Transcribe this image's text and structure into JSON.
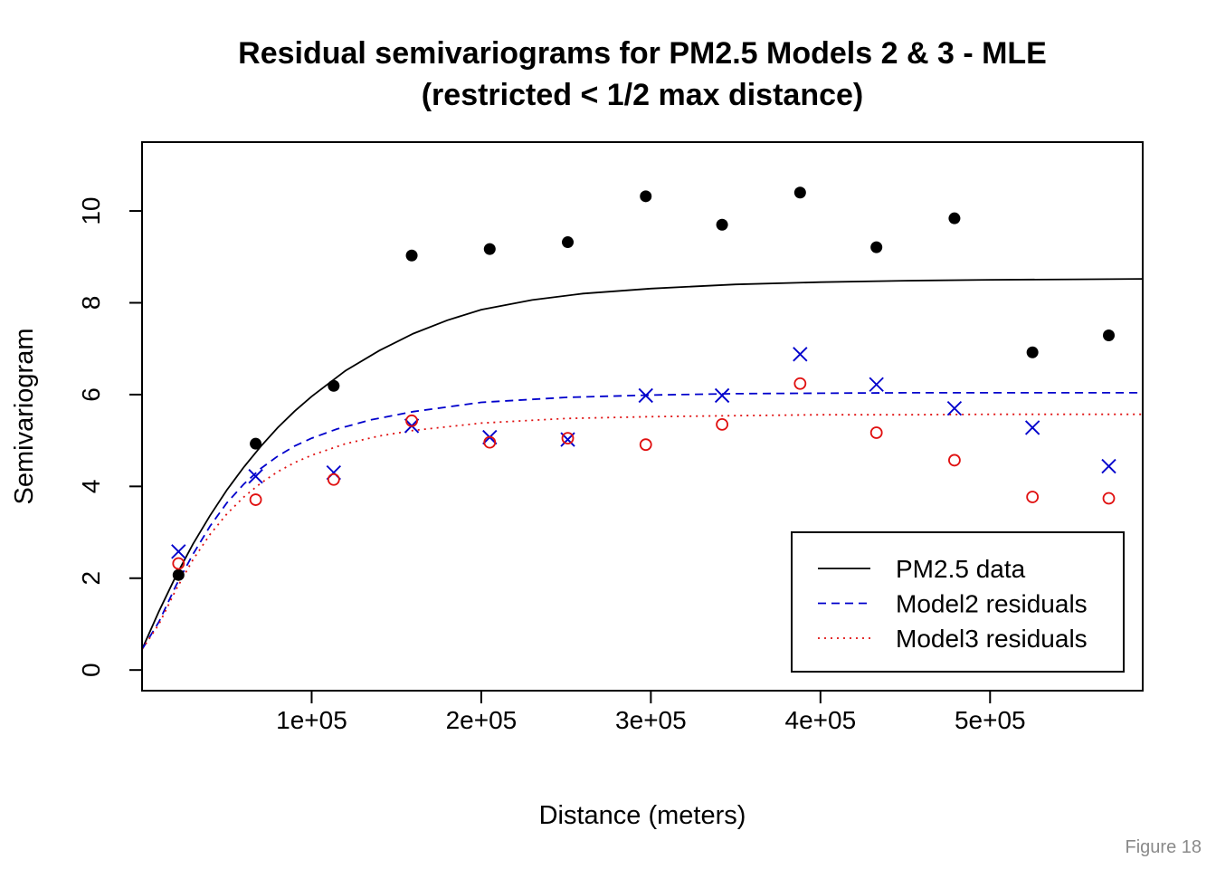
{
  "figure_note": "Figure 18",
  "chart_data": {
    "type": "scatter",
    "title": "Residual semivariograms for PM2.5 Models 2 & 3 - MLE",
    "subtitle": "(restricted < 1/2 max distance)",
    "xlabel": "Distance (meters)",
    "ylabel": "Semivariogram",
    "xlim": [
      0,
      590000
    ],
    "ylim": [
      -0.45,
      11.5
    ],
    "x_ticks": [
      100000,
      200000,
      300000,
      400000,
      500000
    ],
    "x_tick_labels": [
      "1e+05",
      "2e+05",
      "3e+05",
      "4e+05",
      "5e+05"
    ],
    "y_ticks": [
      0,
      2,
      4,
      6,
      8,
      10
    ],
    "y_tick_labels": [
      "0",
      "2",
      "4",
      "6",
      "8",
      "10"
    ],
    "grid": false,
    "legend_position": "bottom-right",
    "series": [
      {
        "kind": "points",
        "marker": "filled-circle",
        "color": "#000000",
        "x": [
          21500,
          67000,
          113000,
          159000,
          205000,
          251000,
          297000,
          342000,
          388000,
          433000,
          479000,
          525000,
          570000
        ],
        "y": [
          2.07,
          4.93,
          6.19,
          9.03,
          9.17,
          9.32,
          10.32,
          9.7,
          10.4,
          9.21,
          9.84,
          6.92,
          7.29
        ]
      },
      {
        "kind": "points",
        "marker": "cross",
        "color": "#0000cc",
        "x": [
          21500,
          67000,
          113000,
          159000,
          205000,
          251000,
          297000,
          342000,
          388000,
          433000,
          479000,
          525000,
          570000
        ],
        "y": [
          2.58,
          4.22,
          4.3,
          5.32,
          5.07,
          5.02,
          5.98,
          5.98,
          6.88,
          6.22,
          5.7,
          5.28,
          4.44
        ]
      },
      {
        "kind": "points",
        "marker": "open-circle",
        "color": "#e01010",
        "x": [
          21500,
          67000,
          113000,
          159000,
          205000,
          251000,
          297000,
          342000,
          388000,
          433000,
          479000,
          525000,
          570000
        ],
        "y": [
          2.32,
          3.71,
          4.15,
          5.43,
          4.96,
          5.05,
          4.91,
          5.35,
          6.24,
          5.17,
          4.57,
          3.77,
          3.74
        ]
      },
      {
        "name": "PM2.5 data",
        "kind": "line",
        "dash": "solid",
        "color": "#000000",
        "x": [
          0,
          10000,
          20000,
          30000,
          40000,
          50000,
          60000,
          70000,
          80000,
          90000,
          100000,
          120000,
          140000,
          160000,
          180000,
          200000,
          230000,
          260000,
          300000,
          350000,
          400000,
          450000,
          500000,
          550000,
          590000
        ],
        "y": [
          0.45,
          1.28,
          2.05,
          2.74,
          3.36,
          3.92,
          4.42,
          4.87,
          5.28,
          5.64,
          5.96,
          6.52,
          6.96,
          7.33,
          7.62,
          7.85,
          8.06,
          8.2,
          8.31,
          8.4,
          8.45,
          8.48,
          8.5,
          8.51,
          8.52
        ]
      },
      {
        "name": "Model2 residuals",
        "kind": "line",
        "dash": "dashed",
        "color": "#0000cc",
        "x": [
          0,
          10000,
          20000,
          30000,
          40000,
          50000,
          60000,
          70000,
          80000,
          90000,
          100000,
          115000,
          135000,
          160000,
          200000,
          250000,
          300000,
          350000,
          400000,
          450000,
          500000,
          550000,
          590000
        ],
        "y": [
          0.45,
          1.05,
          1.84,
          2.52,
          3.13,
          3.64,
          4.05,
          4.39,
          4.66,
          4.88,
          5.05,
          5.25,
          5.45,
          5.63,
          5.83,
          5.94,
          5.99,
          6.02,
          6.03,
          6.04,
          6.04,
          6.04,
          6.04
        ]
      },
      {
        "name": "Model3 residuals",
        "kind": "line",
        "dash": "dotted",
        "color": "#e01010",
        "x": [
          0,
          10000,
          20000,
          30000,
          40000,
          50000,
          60000,
          70000,
          80000,
          90000,
          100000,
          120000,
          140000,
          160000,
          200000,
          250000,
          300000,
          350000,
          400000,
          450000,
          500000,
          550000,
          590000
        ],
        "y": [
          0.45,
          1.0,
          1.75,
          2.4,
          2.95,
          3.4,
          3.77,
          4.07,
          4.32,
          4.52,
          4.68,
          4.93,
          5.1,
          5.22,
          5.38,
          5.48,
          5.52,
          5.54,
          5.56,
          5.56,
          5.57,
          5.57,
          5.57
        ]
      }
    ]
  }
}
